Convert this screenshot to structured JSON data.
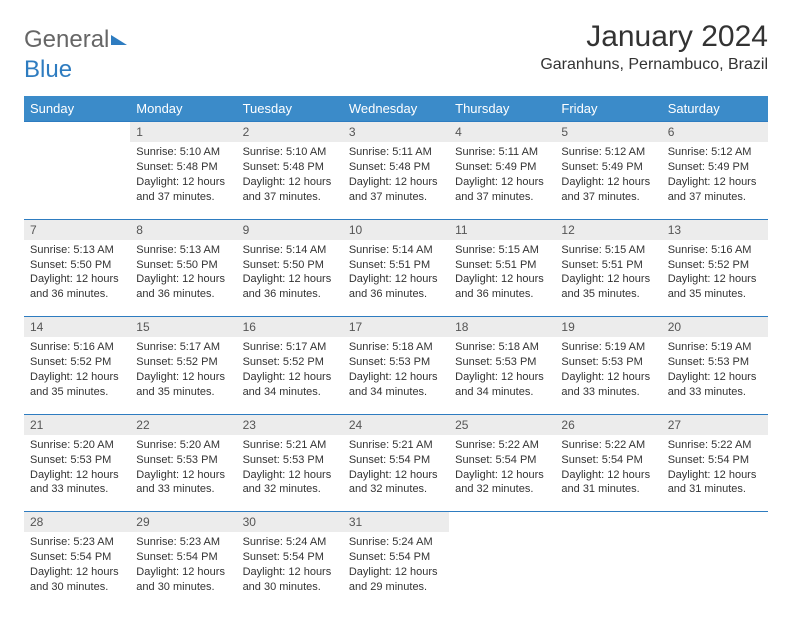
{
  "logo": {
    "part1": "General",
    "part2": "Blue"
  },
  "title": "January 2024",
  "location": "Garanhuns, Pernambuco, Brazil",
  "colors": {
    "header_bg": "#3b8bc9",
    "header_text": "#ffffff",
    "day_bg": "#ececec",
    "divider": "#2e7cc0",
    "text": "#333333",
    "background": "#ffffff",
    "logo_gray": "#666666",
    "logo_blue": "#2e7cc0"
  },
  "typography": {
    "title_fontsize": 30,
    "location_fontsize": 16,
    "header_fontsize": 13,
    "daynum_fontsize": 12,
    "body_fontsize": 11
  },
  "weekdays": [
    "Sunday",
    "Monday",
    "Tuesday",
    "Wednesday",
    "Thursday",
    "Friday",
    "Saturday"
  ],
  "weeks": [
    {
      "nums": [
        "",
        "1",
        "2",
        "3",
        "4",
        "5",
        "6"
      ],
      "cells": [
        null,
        {
          "sunrise": "Sunrise: 5:10 AM",
          "sunset": "Sunset: 5:48 PM",
          "d1": "Daylight: 12 hours",
          "d2": "and 37 minutes."
        },
        {
          "sunrise": "Sunrise: 5:10 AM",
          "sunset": "Sunset: 5:48 PM",
          "d1": "Daylight: 12 hours",
          "d2": "and 37 minutes."
        },
        {
          "sunrise": "Sunrise: 5:11 AM",
          "sunset": "Sunset: 5:48 PM",
          "d1": "Daylight: 12 hours",
          "d2": "and 37 minutes."
        },
        {
          "sunrise": "Sunrise: 5:11 AM",
          "sunset": "Sunset: 5:49 PM",
          "d1": "Daylight: 12 hours",
          "d2": "and 37 minutes."
        },
        {
          "sunrise": "Sunrise: 5:12 AM",
          "sunset": "Sunset: 5:49 PM",
          "d1": "Daylight: 12 hours",
          "d2": "and 37 minutes."
        },
        {
          "sunrise": "Sunrise: 5:12 AM",
          "sunset": "Sunset: 5:49 PM",
          "d1": "Daylight: 12 hours",
          "d2": "and 37 minutes."
        }
      ]
    },
    {
      "nums": [
        "7",
        "8",
        "9",
        "10",
        "11",
        "12",
        "13"
      ],
      "cells": [
        {
          "sunrise": "Sunrise: 5:13 AM",
          "sunset": "Sunset: 5:50 PM",
          "d1": "Daylight: 12 hours",
          "d2": "and 36 minutes."
        },
        {
          "sunrise": "Sunrise: 5:13 AM",
          "sunset": "Sunset: 5:50 PM",
          "d1": "Daylight: 12 hours",
          "d2": "and 36 minutes."
        },
        {
          "sunrise": "Sunrise: 5:14 AM",
          "sunset": "Sunset: 5:50 PM",
          "d1": "Daylight: 12 hours",
          "d2": "and 36 minutes."
        },
        {
          "sunrise": "Sunrise: 5:14 AM",
          "sunset": "Sunset: 5:51 PM",
          "d1": "Daylight: 12 hours",
          "d2": "and 36 minutes."
        },
        {
          "sunrise": "Sunrise: 5:15 AM",
          "sunset": "Sunset: 5:51 PM",
          "d1": "Daylight: 12 hours",
          "d2": "and 36 minutes."
        },
        {
          "sunrise": "Sunrise: 5:15 AM",
          "sunset": "Sunset: 5:51 PM",
          "d1": "Daylight: 12 hours",
          "d2": "and 35 minutes."
        },
        {
          "sunrise": "Sunrise: 5:16 AM",
          "sunset": "Sunset: 5:52 PM",
          "d1": "Daylight: 12 hours",
          "d2": "and 35 minutes."
        }
      ]
    },
    {
      "nums": [
        "14",
        "15",
        "16",
        "17",
        "18",
        "19",
        "20"
      ],
      "cells": [
        {
          "sunrise": "Sunrise: 5:16 AM",
          "sunset": "Sunset: 5:52 PM",
          "d1": "Daylight: 12 hours",
          "d2": "and 35 minutes."
        },
        {
          "sunrise": "Sunrise: 5:17 AM",
          "sunset": "Sunset: 5:52 PM",
          "d1": "Daylight: 12 hours",
          "d2": "and 35 minutes."
        },
        {
          "sunrise": "Sunrise: 5:17 AM",
          "sunset": "Sunset: 5:52 PM",
          "d1": "Daylight: 12 hours",
          "d2": "and 34 minutes."
        },
        {
          "sunrise": "Sunrise: 5:18 AM",
          "sunset": "Sunset: 5:53 PM",
          "d1": "Daylight: 12 hours",
          "d2": "and 34 minutes."
        },
        {
          "sunrise": "Sunrise: 5:18 AM",
          "sunset": "Sunset: 5:53 PM",
          "d1": "Daylight: 12 hours",
          "d2": "and 34 minutes."
        },
        {
          "sunrise": "Sunrise: 5:19 AM",
          "sunset": "Sunset: 5:53 PM",
          "d1": "Daylight: 12 hours",
          "d2": "and 33 minutes."
        },
        {
          "sunrise": "Sunrise: 5:19 AM",
          "sunset": "Sunset: 5:53 PM",
          "d1": "Daylight: 12 hours",
          "d2": "and 33 minutes."
        }
      ]
    },
    {
      "nums": [
        "21",
        "22",
        "23",
        "24",
        "25",
        "26",
        "27"
      ],
      "cells": [
        {
          "sunrise": "Sunrise: 5:20 AM",
          "sunset": "Sunset: 5:53 PM",
          "d1": "Daylight: 12 hours",
          "d2": "and 33 minutes."
        },
        {
          "sunrise": "Sunrise: 5:20 AM",
          "sunset": "Sunset: 5:53 PM",
          "d1": "Daylight: 12 hours",
          "d2": "and 33 minutes."
        },
        {
          "sunrise": "Sunrise: 5:21 AM",
          "sunset": "Sunset: 5:53 PM",
          "d1": "Daylight: 12 hours",
          "d2": "and 32 minutes."
        },
        {
          "sunrise": "Sunrise: 5:21 AM",
          "sunset": "Sunset: 5:54 PM",
          "d1": "Daylight: 12 hours",
          "d2": "and 32 minutes."
        },
        {
          "sunrise": "Sunrise: 5:22 AM",
          "sunset": "Sunset: 5:54 PM",
          "d1": "Daylight: 12 hours",
          "d2": "and 32 minutes."
        },
        {
          "sunrise": "Sunrise: 5:22 AM",
          "sunset": "Sunset: 5:54 PM",
          "d1": "Daylight: 12 hours",
          "d2": "and 31 minutes."
        },
        {
          "sunrise": "Sunrise: 5:22 AM",
          "sunset": "Sunset: 5:54 PM",
          "d1": "Daylight: 12 hours",
          "d2": "and 31 minutes."
        }
      ]
    },
    {
      "nums": [
        "28",
        "29",
        "30",
        "31",
        "",
        "",
        ""
      ],
      "cells": [
        {
          "sunrise": "Sunrise: 5:23 AM",
          "sunset": "Sunset: 5:54 PM",
          "d1": "Daylight: 12 hours",
          "d2": "and 30 minutes."
        },
        {
          "sunrise": "Sunrise: 5:23 AM",
          "sunset": "Sunset: 5:54 PM",
          "d1": "Daylight: 12 hours",
          "d2": "and 30 minutes."
        },
        {
          "sunrise": "Sunrise: 5:24 AM",
          "sunset": "Sunset: 5:54 PM",
          "d1": "Daylight: 12 hours",
          "d2": "and 30 minutes."
        },
        {
          "sunrise": "Sunrise: 5:24 AM",
          "sunset": "Sunset: 5:54 PM",
          "d1": "Daylight: 12 hours",
          "d2": "and 29 minutes."
        },
        null,
        null,
        null
      ]
    }
  ]
}
